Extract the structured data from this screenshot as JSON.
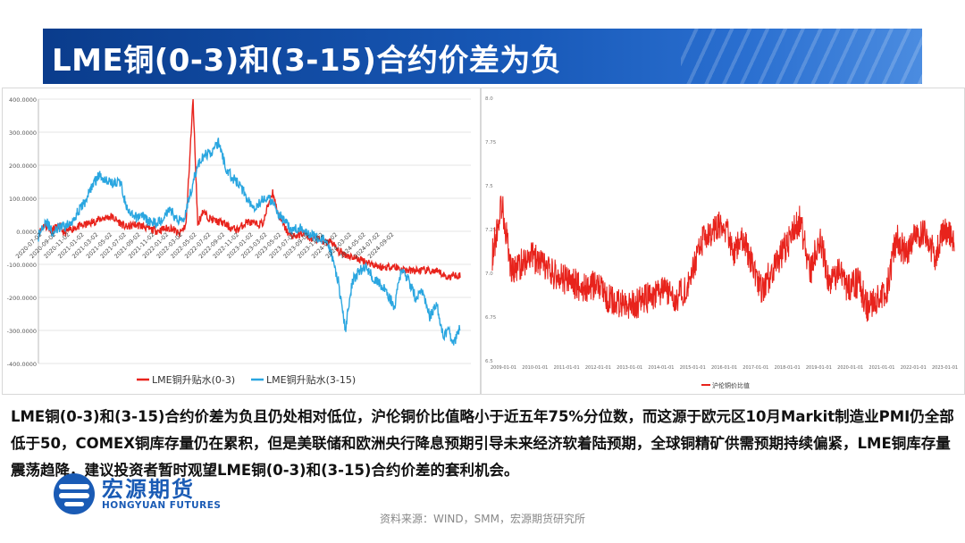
{
  "title": "LME铜(0-3)和(3-15)合约价差为负",
  "body_text": "LME铜(0-3)和(3-15)合约价差为负且仍处相对低位，沪伦铜价比值略小于近五年75%分位数，而这源于欧元区10月Markit制造业PMI仍全部低于50，COMEX铜库存量仍在累积，但是美联储和欧洲央行降息预期引导未来经济软着陆预期，全球铜精矿供需预期持续偏紧，LME铜库存量震荡趋降，建议投资者暂时观望LME铜(0-3)和(3-15)合约价差的套利机会。",
  "source": "资料来源：WIND，SMM，宏源期货研究所",
  "logo": {
    "cn": "宏源期货",
    "en": "HONGYUAN FUTURES"
  },
  "colors": {
    "red": "#e8231c",
    "blue": "#2aa6e0",
    "banner": "#1859b8"
  },
  "chart_data": [
    {
      "type": "line",
      "ylim": [
        -400,
        400
      ],
      "yticks": [
        "400.0000",
        "300.0000",
        "200.0000",
        "100.0000",
        "0.0000",
        "-100.0000",
        "-200.0000",
        "-300.0000",
        "-400.0000"
      ],
      "ytick_values": [
        400,
        300,
        200,
        100,
        0,
        -100,
        -200,
        -300,
        -400
      ],
      "xticks": [
        "2020-07-02",
        "2020-09-02",
        "2020-11-02",
        "2021-01-02",
        "2021-03-02",
        "2021-05-02",
        "2021-07-02",
        "2021-09-02",
        "2021-11-02",
        "2022-01-02",
        "2022-03-02",
        "2022-05-02",
        "2022-07-02",
        "2022-09-02",
        "2022-11-02",
        "2023-01-02",
        "2023-03-02",
        "2023-05-02",
        "2023-07-02",
        "2023-09-02",
        "2023-11-02",
        "2024-01-02",
        "2024-03-02",
        "2024-05-02",
        "2024-07-02",
        "2024-09-02"
      ],
      "legend": "bottom",
      "series": [
        {
          "name": "LME铜升贴水(0-3)",
          "color": "#e8231c",
          "keys": [
            [
              0,
              -8
            ],
            [
              5,
              20
            ],
            [
              10,
              5
            ],
            [
              18,
              15
            ],
            [
              22,
              -5
            ],
            [
              30,
              10
            ],
            [
              40,
              20
            ],
            [
              48,
              30
            ],
            [
              55,
              40
            ],
            [
              62,
              45
            ],
            [
              68,
              30
            ],
            [
              75,
              12
            ],
            [
              82,
              20
            ],
            [
              90,
              15
            ],
            [
              96,
              5
            ],
            [
              102,
              2
            ],
            [
              108,
              8
            ],
            [
              114,
              10
            ],
            [
              120,
              -10
            ],
            [
              126,
              20
            ],
            [
              132,
              400
            ],
            [
              136,
              20
            ],
            [
              140,
              60
            ],
            [
              146,
              40
            ],
            [
              152,
              30
            ],
            [
              158,
              25
            ],
            [
              164,
              10
            ],
            [
              170,
              5
            ],
            [
              178,
              30
            ],
            [
              186,
              20
            ],
            [
              192,
              25
            ],
            [
              196,
              80
            ],
            [
              200,
              120
            ],
            [
              204,
              60
            ],
            [
              208,
              25
            ],
            [
              214,
              -10
            ],
            [
              220,
              -15
            ],
            [
              226,
              -5
            ],
            [
              232,
              -20
            ],
            [
              238,
              -25
            ],
            [
              244,
              -35
            ],
            [
              250,
              -30
            ],
            [
              256,
              -60
            ],
            [
              262,
              -70
            ],
            [
              270,
              -80
            ],
            [
              278,
              -90
            ],
            [
              286,
              -100
            ],
            [
              294,
              -110
            ],
            [
              302,
              -105
            ],
            [
              310,
              -115
            ],
            [
              318,
              -120
            ],
            [
              326,
              -118
            ],
            [
              334,
              -120
            ],
            [
              342,
              -125
            ],
            [
              350,
              -140
            ],
            [
              356,
              -130
            ],
            [
              360,
              -135
            ]
          ]
        },
        {
          "name": "LME铜升贴水(3-15)",
          "color": "#2aa6e0",
          "keys": [
            [
              0,
              -15
            ],
            [
              6,
              35
            ],
            [
              12,
              -5
            ],
            [
              18,
              10
            ],
            [
              26,
              20
            ],
            [
              34,
              60
            ],
            [
              40,
              90
            ],
            [
              46,
              140
            ],
            [
              52,
              170
            ],
            [
              58,
              155
            ],
            [
              64,
              145
            ],
            [
              70,
              150
            ],
            [
              76,
              60
            ],
            [
              82,
              40
            ],
            [
              88,
              50
            ],
            [
              96,
              25
            ],
            [
              104,
              30
            ],
            [
              112,
              70
            ],
            [
              118,
              35
            ],
            [
              124,
              40
            ],
            [
              130,
              120
            ],
            [
              136,
              200
            ],
            [
              142,
              230
            ],
            [
              148,
              240
            ],
            [
              154,
              270
            ],
            [
              160,
              190
            ],
            [
              166,
              160
            ],
            [
              172,
              140
            ],
            [
              178,
              100
            ],
            [
              184,
              75
            ],
            [
              190,
              90
            ],
            [
              196,
              105
            ],
            [
              202,
              70
            ],
            [
              208,
              40
            ],
            [
              214,
              10
            ],
            [
              220,
              5
            ],
            [
              226,
              10
            ],
            [
              232,
              -10
            ],
            [
              238,
              -20
            ],
            [
              244,
              -25
            ],
            [
              250,
              -70
            ],
            [
              256,
              -150
            ],
            [
              262,
              -300
            ],
            [
              268,
              -150
            ],
            [
              274,
              -120
            ],
            [
              280,
              -110
            ],
            [
              286,
              -140
            ],
            [
              292,
              -160
            ],
            [
              298,
              -190
            ],
            [
              304,
              -230
            ],
            [
              310,
              -110
            ],
            [
              316,
              -150
            ],
            [
              322,
              -200
            ],
            [
              328,
              -180
            ],
            [
              334,
              -260
            ],
            [
              340,
              -220
            ],
            [
              346,
              -320
            ],
            [
              350,
              -300
            ],
            [
              354,
              -340
            ],
            [
              358,
              -310
            ],
            [
              360,
              -290
            ]
          ]
        }
      ]
    },
    {
      "type": "line",
      "ylim": [
        6.5,
        8.0
      ],
      "yticks": [
        "8.0",
        "7.75",
        "7.5",
        "7.25",
        "7.0",
        "6.75",
        "6.5"
      ],
      "ytick_values": [
        8.0,
        7.75,
        7.5,
        7.25,
        7.0,
        6.75,
        6.5
      ],
      "xticks": [
        "2009-01-01",
        "2010-01-01",
        "2011-01-01",
        "2012-01-01",
        "2013-01-01",
        "2014-01-01",
        "2015-01-01",
        "2016-01-01",
        "2017-01-01",
        "2018-01-01",
        "2019-01-01",
        "2020-01-01",
        "2021-01-01",
        "2022-01-01",
        "2023-01-01"
      ],
      "legend": "bottom-left",
      "series": [
        {
          "name": "沪伦铜价比值",
          "color": "#e8231c",
          "keys": [
            [
              0,
              7.1
            ],
            [
              1,
              7.4
            ],
            [
              2,
              7.0
            ],
            [
              4,
              7.1
            ],
            [
              6,
              7.0
            ],
            [
              8,
              6.95
            ],
            [
              10,
              6.9
            ],
            [
              11,
              6.95
            ],
            [
              12,
              6.85
            ],
            [
              14,
              6.8
            ],
            [
              16,
              6.85
            ],
            [
              18,
              6.9
            ],
            [
              19,
              6.85
            ],
            [
              20,
              6.9
            ],
            [
              22,
              7.2
            ],
            [
              24,
              7.3
            ],
            [
              25,
              7.1
            ],
            [
              26,
              7.2
            ],
            [
              28,
              6.9
            ],
            [
              30,
              7.1
            ],
            [
              32,
              7.3
            ],
            [
              33,
              7.0
            ],
            [
              34,
              7.2
            ],
            [
              35,
              6.95
            ],
            [
              36,
              7.0
            ],
            [
              37,
              6.9
            ],
            [
              38,
              6.95
            ],
            [
              39,
              6.8
            ],
            [
              40,
              6.85
            ],
            [
              41,
              6.9
            ],
            [
              42,
              7.2
            ],
            [
              43,
              7.1
            ],
            [
              44,
              7.25
            ],
            [
              45,
              7.2
            ],
            [
              46,
              7.1
            ],
            [
              47,
              7.25
            ],
            [
              48,
              7.2
            ]
          ]
        }
      ]
    }
  ]
}
